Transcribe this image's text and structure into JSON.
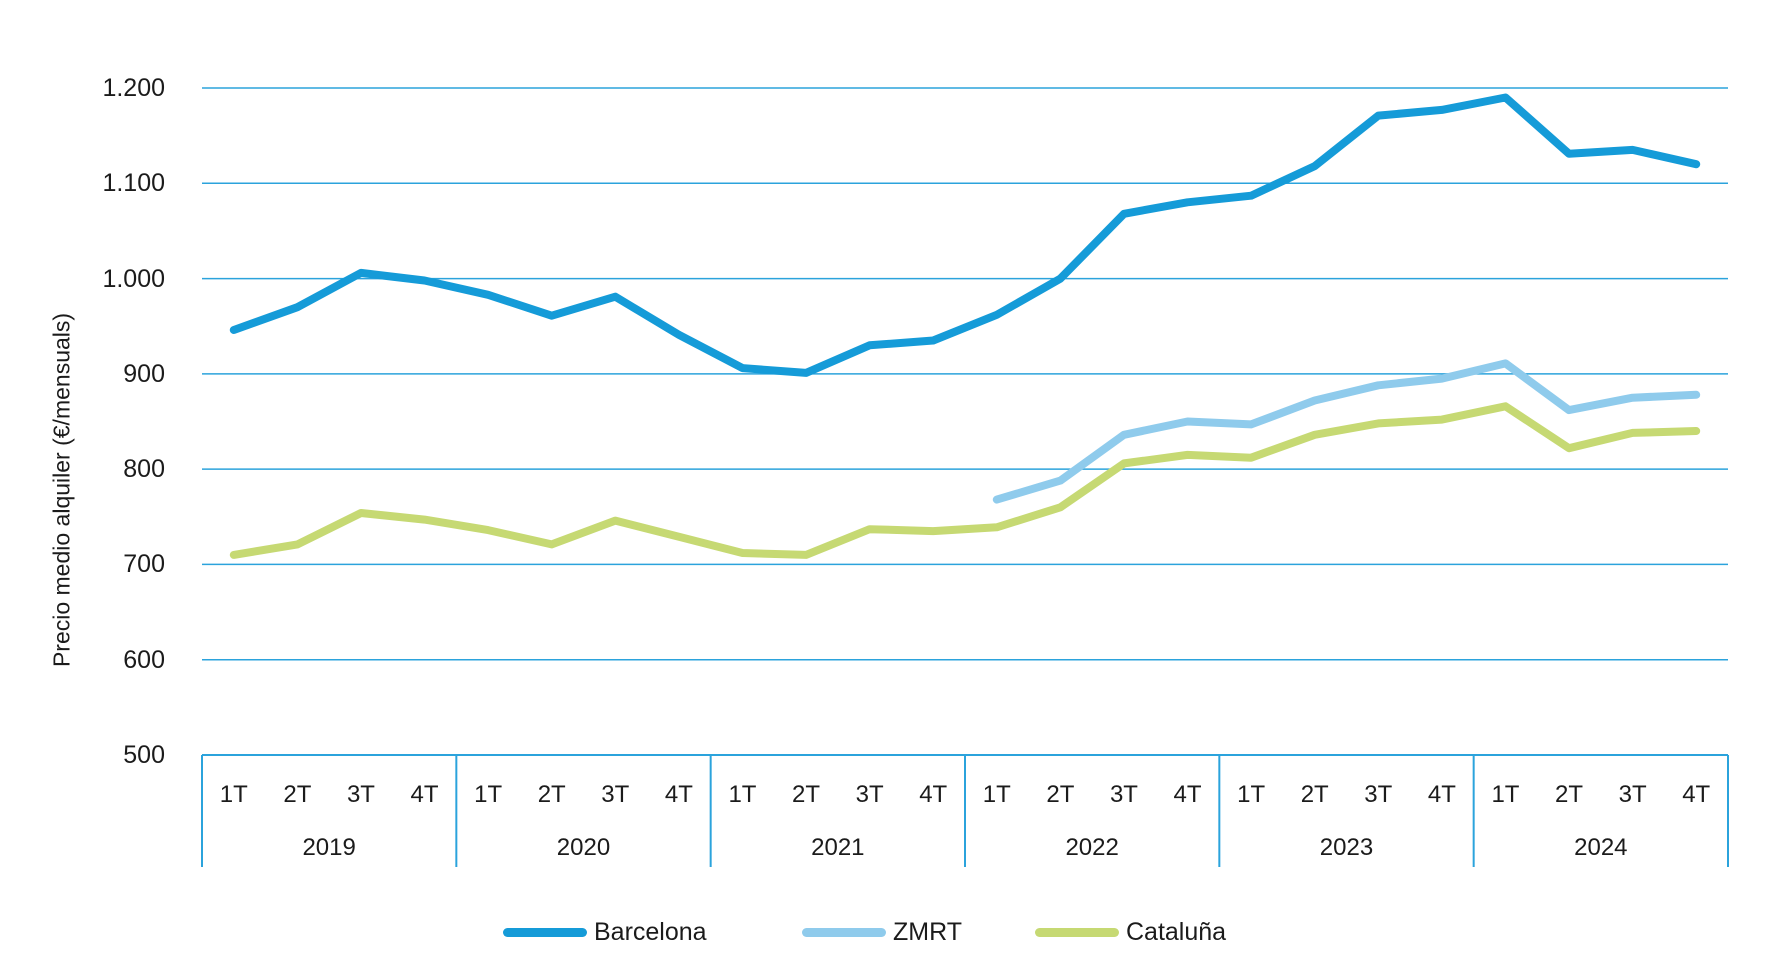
{
  "y_axis": {
    "title": "Precio medio alquiler (€/mensuals)",
    "tick_labels": [
      "1.200",
      "1.100",
      "1.000",
      "900",
      "800",
      "700",
      "600",
      "500"
    ],
    "tick_values": [
      1200,
      1100,
      1000,
      900,
      800,
      700,
      600,
      500
    ]
  },
  "x_axis": {
    "quarter_labels": [
      "1T",
      "2T",
      "3T",
      "4T"
    ],
    "years": [
      "2019",
      "2020",
      "2021",
      "2022",
      "2023",
      "2024"
    ]
  },
  "chart_data": {
    "type": "line",
    "title": "",
    "ylabel": "Precio medio alquiler (€/mensuals)",
    "ylim": [
      500,
      1200
    ],
    "ytick_interval": 100,
    "grid": true,
    "legend_position": "bottom",
    "categories": [
      "1T 2019",
      "2T 2019",
      "3T 2019",
      "4T 2019",
      "1T 2020",
      "2T 2020",
      "3T 2020",
      "4T 2020",
      "1T 2021",
      "2T 2021",
      "3T 2021",
      "4T 2021",
      "1T 2022",
      "2T 2022",
      "3T 2022",
      "4T 2022",
      "1T 2023",
      "2T 2023",
      "3T 2023",
      "4T 2023",
      "1T 2024",
      "2T 2024",
      "3T 2024",
      "4T 2024"
    ],
    "series": [
      {
        "name": "Barcelona",
        "color": "#159BD8",
        "values": [
          946,
          970,
          1006,
          998,
          983,
          961,
          981,
          941,
          906,
          901,
          930,
          935,
          962,
          1000,
          1068,
          1080,
          1087,
          1118,
          1171,
          1177,
          1190,
          1131,
          1135,
          1120
        ]
      },
      {
        "name": "ZMRT",
        "color": "#8FCBEC",
        "values": [
          null,
          null,
          null,
          null,
          null,
          null,
          null,
          null,
          null,
          null,
          null,
          null,
          768,
          788,
          836,
          850,
          847,
          872,
          888,
          895,
          911,
          862,
          875,
          878
        ]
      },
      {
        "name": "Cataluña",
        "color": "#C6D973",
        "values": [
          710,
          721,
          754,
          747,
          736,
          721,
          746,
          729,
          712,
          710,
          737,
          735,
          739,
          760,
          806,
          815,
          812,
          836,
          848,
          852,
          866,
          822,
          838,
          840
        ]
      }
    ]
  },
  "colors": {
    "gridline": "#2BA3DC",
    "axis_border": "#2BA3DC",
    "text": "#1B1B1B"
  }
}
